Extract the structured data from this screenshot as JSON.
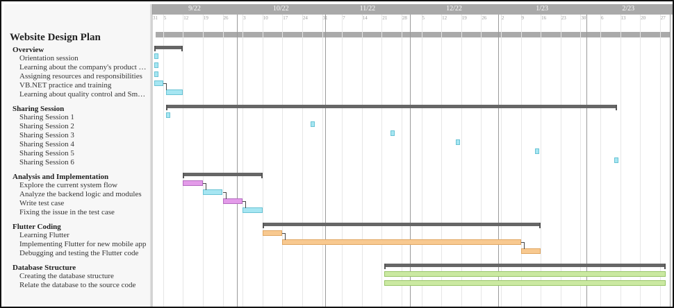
{
  "project": {
    "title": "Website Design Plan"
  },
  "timeline": {
    "months": [
      {
        "label": "9/22",
        "start": "2022-09-01"
      },
      {
        "label": "10/22",
        "start": "2022-10-01"
      },
      {
        "label": "11/22",
        "start": "2022-11-01"
      },
      {
        "label": "12/22",
        "start": "2022-12-01"
      },
      {
        "label": "1/23",
        "start": "2023-01-01"
      },
      {
        "label": "2/23",
        "start": "2023-02-01"
      }
    ],
    "week_ticks": [
      {
        "label": "31",
        "date": "2022-08-31"
      },
      {
        "label": "5",
        "date": "2022-09-05"
      },
      {
        "label": "12",
        "date": "2022-09-12"
      },
      {
        "label": "19",
        "date": "2022-09-19"
      },
      {
        "label": "26",
        "date": "2022-09-26"
      },
      {
        "label": "3",
        "date": "2022-10-03"
      },
      {
        "label": "10",
        "date": "2022-10-10"
      },
      {
        "label": "17",
        "date": "2022-10-17"
      },
      {
        "label": "24",
        "date": "2022-10-24"
      },
      {
        "label": "31",
        "date": "2022-10-31"
      },
      {
        "label": "7",
        "date": "2022-11-07"
      },
      {
        "label": "14",
        "date": "2022-11-14"
      },
      {
        "label": "21",
        "date": "2022-11-21"
      },
      {
        "label": "28",
        "date": "2022-11-28"
      },
      {
        "label": "5",
        "date": "2022-12-05"
      },
      {
        "label": "12",
        "date": "2022-12-12"
      },
      {
        "label": "19",
        "date": "2022-12-19"
      },
      {
        "label": "26",
        "date": "2022-12-26"
      },
      {
        "label": "2",
        "date": "2023-01-02"
      },
      {
        "label": "9",
        "date": "2023-01-09"
      },
      {
        "label": "16",
        "date": "2023-01-16"
      },
      {
        "label": "23",
        "date": "2023-01-23"
      },
      {
        "label": "30",
        "date": "2023-01-30"
      },
      {
        "label": "6",
        "date": "2023-02-06"
      },
      {
        "label": "13",
        "date": "2023-02-13"
      },
      {
        "label": "20",
        "date": "2023-02-20"
      },
      {
        "label": "27",
        "date": "2023-02-27"
      }
    ]
  },
  "colors": {
    "cyan": "#a6e6f2",
    "cyan_border": "#69c3d4",
    "purple": "#e39be9",
    "purple_border": "#b46bbf",
    "orange": "#f8c990",
    "orange_border": "#e0a662",
    "green": "#cbe9a2",
    "green_border": "#97c466",
    "summary": "#666666",
    "project": "#aaaaaa"
  },
  "groups": [
    {
      "name": "Overview",
      "start": "2022-09-02",
      "end": "2022-09-12",
      "tasks": [
        {
          "name": "Orientation session",
          "start": "2022-09-02",
          "end": "2022-09-03",
          "color": "cyan"
        },
        {
          "name": "Learning about the company's product and serv...",
          "start": "2022-09-02",
          "end": "2022-09-03",
          "color": "cyan"
        },
        {
          "name": "Assigning resources and responsibilities",
          "start": "2022-09-02",
          "end": "2022-09-03",
          "color": "cyan"
        },
        {
          "name": "VB.NET practice and training",
          "start": "2022-09-02",
          "end": "2022-09-05",
          "color": "cyan"
        },
        {
          "name": "Learning about quality control and Smart QC s...",
          "start": "2022-09-06",
          "end": "2022-09-12",
          "color": "cyan",
          "dep": true
        }
      ]
    },
    {
      "name": "Sharing Session",
      "start": "2022-09-06",
      "end": "2023-02-12",
      "tasks": [
        {
          "name": "Sharing Session 1",
          "start": "2022-09-06",
          "end": "2022-09-07",
          "color": "cyan"
        },
        {
          "name": "Sharing Session 2",
          "start": "2022-10-27",
          "end": "2022-10-28",
          "color": "cyan"
        },
        {
          "name": "Sharing Session 3",
          "start": "2022-11-24",
          "end": "2022-11-25",
          "color": "cyan"
        },
        {
          "name": "Sharing Session 4",
          "start": "2022-12-17",
          "end": "2022-12-18",
          "color": "cyan"
        },
        {
          "name": "Sharing Session 5",
          "start": "2023-01-14",
          "end": "2023-01-15",
          "color": "cyan"
        },
        {
          "name": "Sharing Session 6",
          "start": "2023-02-11",
          "end": "2023-02-12",
          "color": "cyan"
        }
      ]
    },
    {
      "name": "Analysis and Implementation",
      "start": "2022-09-12",
      "end": "2022-10-10",
      "tasks": [
        {
          "name": "Explore the current system flow",
          "start": "2022-09-12",
          "end": "2022-09-19",
          "color": "purple"
        },
        {
          "name": "Analyze the backend logic and modules",
          "start": "2022-09-19",
          "end": "2022-09-26",
          "color": "cyan",
          "dep": true
        },
        {
          "name": "Write test case",
          "start": "2022-09-26",
          "end": "2022-10-03",
          "color": "purple",
          "dep": true
        },
        {
          "name": "Fixing the issue in the test case",
          "start": "2022-10-03",
          "end": "2022-10-10",
          "color": "cyan",
          "dep": true
        }
      ]
    },
    {
      "name": "Flutter Coding",
      "start": "2022-10-10",
      "end": "2023-01-16",
      "tasks": [
        {
          "name": "Learning Flutter",
          "start": "2022-10-10",
          "end": "2022-10-17",
          "color": "orange"
        },
        {
          "name": "Implementing Flutter for new mobile app",
          "start": "2022-10-17",
          "end": "2023-01-09",
          "color": "orange",
          "dep": true
        },
        {
          "name": "Debugging and testing the Flutter code",
          "start": "2023-01-09",
          "end": "2023-01-16",
          "color": "orange",
          "dep": true
        }
      ]
    },
    {
      "name": "Database Structure",
      "start": "2022-11-22",
      "end": "2023-03-01",
      "tasks": [
        {
          "name": "Creating the database structure",
          "start": "2022-11-22",
          "end": "2023-03-01",
          "color": "green"
        },
        {
          "name": "Relate the database to the source code",
          "start": "2022-11-22",
          "end": "2023-03-01",
          "color": "green"
        }
      ]
    }
  ]
}
